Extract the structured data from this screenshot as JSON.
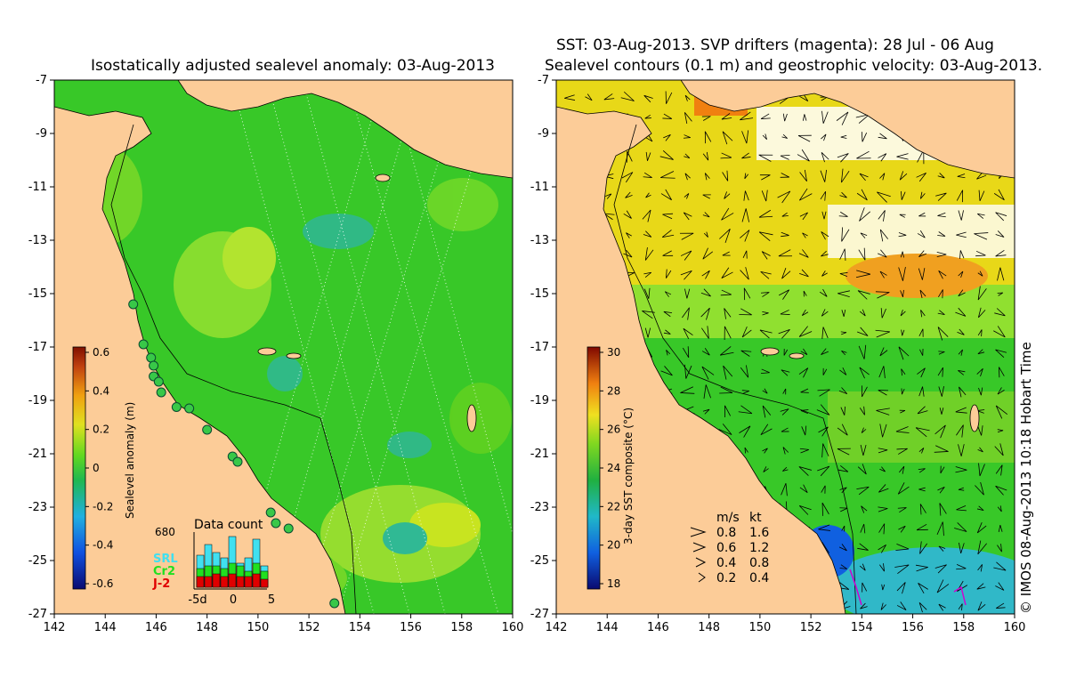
{
  "left_panel": {
    "title": "Isostatically adjusted sealevel anomaly: 03-Aug-2013",
    "colorbar": {
      "label": "Sealevel anomaly (m)",
      "ticks": [
        "0.6",
        "0.4",
        "0.2",
        "0",
        "-0.2",
        "-0.4",
        "-0.6"
      ]
    },
    "data_count": {
      "title": "Data count",
      "max_label": "680",
      "x_ticks": [
        "-5d",
        "0",
        "5"
      ],
      "series": [
        {
          "name": "SRL",
          "color": "#40e0f0"
        },
        {
          "name": "Cr2",
          "color": "#20e020"
        },
        {
          "name": "J-2",
          "color": "#e00000"
        }
      ],
      "bars": [
        {
          "SRL": 0.6,
          "Cr2": 0.35,
          "J-2": 0.2
        },
        {
          "SRL": 0.8,
          "Cr2": 0.4,
          "J-2": 0.2
        },
        {
          "SRL": 0.65,
          "Cr2": 0.4,
          "J-2": 0.25
        },
        {
          "SRL": 0.55,
          "Cr2": 0.35,
          "J-2": 0.2
        },
        {
          "SRL": 0.95,
          "Cr2": 0.45,
          "J-2": 0.25
        },
        {
          "SRL": 0.45,
          "Cr2": 0.4,
          "J-2": 0.2
        },
        {
          "SRL": 0.55,
          "Cr2": 0.3,
          "J-2": 0.2
        },
        {
          "SRL": 0.9,
          "Cr2": 0.45,
          "J-2": 0.25
        },
        {
          "SRL": 0.4,
          "Cr2": 0.3,
          "J-2": 0.15
        }
      ]
    },
    "coast_markers_lonlat": [
      [
        145.1,
        -15.4
      ],
      [
        145.5,
        -16.9
      ],
      [
        145.8,
        -17.4
      ],
      [
        145.9,
        -17.7
      ],
      [
        145.9,
        -18.1
      ],
      [
        146.1,
        -18.3
      ],
      [
        146.2,
        -18.7
      ],
      [
        146.8,
        -19.25
      ],
      [
        147.3,
        -19.3
      ],
      [
        148.0,
        -20.1
      ],
      [
        149.0,
        -21.1
      ],
      [
        149.2,
        -21.3
      ],
      [
        150.5,
        -23.2
      ],
      [
        150.7,
        -23.6
      ],
      [
        151.2,
        -23.8
      ],
      [
        153.0,
        -26.6
      ]
    ]
  },
  "right_panel": {
    "title_line1": "SST: 03-Aug-2013. SVP drifters (magenta): 28 Jul - 06 Aug",
    "title_line2": "Sealevel contours (0.1 m) and geostrophic velocity: 03-Aug-2013.",
    "colorbar": {
      "label": "3-day SST composite (°C)",
      "ticks": [
        "30",
        "28",
        "26",
        "24",
        "22",
        "20",
        "18"
      ]
    },
    "velocity_legend": {
      "header_ms": "m/s",
      "header_kt": "kt",
      "rows": [
        {
          "ms": "0.8",
          "kt": "1.6"
        },
        {
          "ms": "0.6",
          "kt": "1.2"
        },
        {
          "ms": "0.4",
          "kt": "0.8"
        },
        {
          "ms": "0.2",
          "kt": "0.4"
        }
      ]
    }
  },
  "axes": {
    "lat_ticks": [
      "-7",
      "-9",
      "-11",
      "-13",
      "-15",
      "-17",
      "-19",
      "-21",
      "-23",
      "-25",
      "-27"
    ],
    "lon_ticks": [
      "142",
      "144",
      "146",
      "148",
      "150",
      "152",
      "154",
      "156",
      "158",
      "160"
    ],
    "lon_range": [
      142,
      160
    ],
    "lat_range": [
      -27,
      -7
    ]
  },
  "copyright": "© IMOS 08-Aug-2013 10:18 Hobart Time",
  "colors": {
    "land": "#fccc98",
    "ocean_green": "#38c828",
    "ocean_light": "#90e030",
    "sst_yellow": "#e8d818",
    "sst_orange": "#f0a020",
    "sst_cyan": "#30b8c8",
    "sst_white": "#ffffff"
  }
}
